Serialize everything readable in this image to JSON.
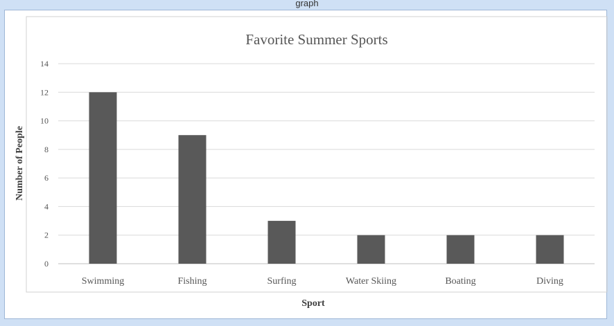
{
  "caption_fragment": "graph",
  "chart_data": {
    "type": "bar",
    "title": "Favorite Summer Sports",
    "xlabel": "Sport",
    "ylabel": "Number of People",
    "categories": [
      "Swimming",
      "Fishing",
      "Surfing",
      "Water Skiing",
      "Boating",
      "Diving"
    ],
    "values": [
      12,
      9,
      3,
      2,
      2,
      2
    ],
    "ylim": [
      0,
      14
    ],
    "yticks": [
      0,
      2,
      4,
      6,
      8,
      10,
      12,
      14
    ],
    "grid": true,
    "legend": "none",
    "bar_color": "#595959",
    "grid_color": "#d9d9d9"
  }
}
